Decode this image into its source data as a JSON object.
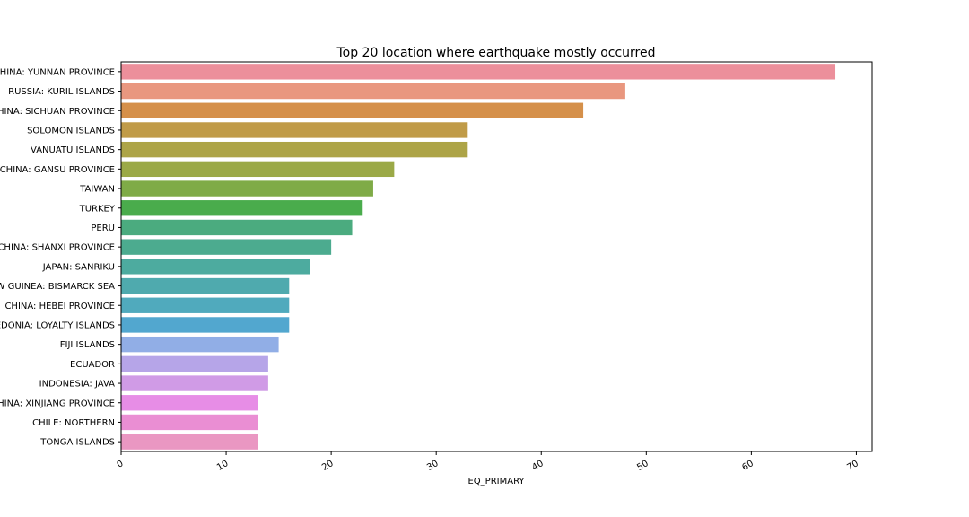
{
  "chart_data": {
    "type": "bar",
    "orientation": "horizontal",
    "title": "Top 20 location where earthquake mostly occurred",
    "xlabel": "EQ_PRIMARY",
    "ylabel": "",
    "xlim": [
      0,
      71.5
    ],
    "x_ticks": [
      0,
      10,
      20,
      30,
      40,
      50,
      60,
      70
    ],
    "grid": false,
    "legend": "none",
    "categories": [
      "CHINA:  YUNNAN PROVINCE",
      "RUSSIA:  KURIL ISLANDS",
      "CHINA:  SICHUAN PROVINCE",
      "SOLOMON ISLANDS",
      "VANUATU ISLANDS",
      "CHINA:  GANSU PROVINCE",
      "TAIWAN",
      "TURKEY",
      "PERU",
      "CHINA:  SHANXI PROVINCE",
      "JAPAN:  SANRIKU",
      "PAPUA NEW GUINEA:  BISMARCK SEA",
      "CHINA:  HEBEI PROVINCE",
      "NEW CALEDONIA:  LOYALTY ISLANDS",
      "FIJI ISLANDS",
      "ECUADOR",
      "INDONESIA:  JAVA",
      "CHINA:  XINJIANG PROVINCE",
      "CHILE:  NORTHERN",
      "TONGA ISLANDS"
    ],
    "values": [
      68,
      48,
      44,
      33,
      33,
      26,
      24,
      23,
      22,
      20,
      18,
      16,
      16,
      16,
      15,
      14,
      14,
      13,
      13,
      13
    ],
    "colors": [
      "#ec8f9b",
      "#e9977f",
      "#d5904a",
      "#c09b48",
      "#ada447",
      "#9ba947",
      "#7fab47",
      "#4aac4c",
      "#4bab7f",
      "#4cab8f",
      "#4dab9f",
      "#4faaae",
      "#50aabd",
      "#52a7cf",
      "#91aee6",
      "#b6a5e8",
      "#d09be6",
      "#e78de6",
      "#ea8ed3",
      "#ea97c2"
    ]
  }
}
